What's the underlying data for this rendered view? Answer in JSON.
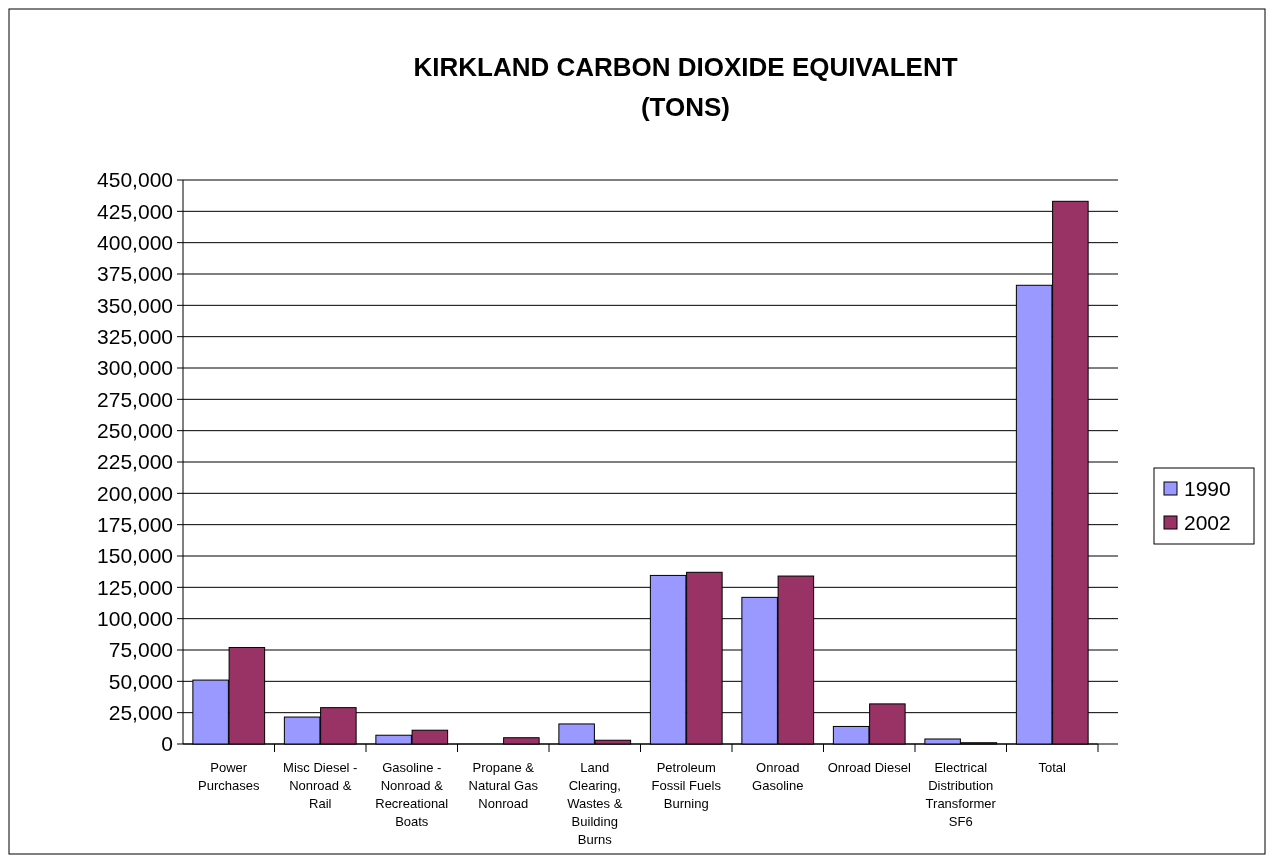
{
  "chart_data": {
    "type": "bar",
    "title": "KIRKLAND CARBON DIOXIDE EQUIVALENT (TONS)",
    "categories": [
      "Power Purchases",
      "Misc Diesel - Nonroad & Rail",
      "Gasoline - Nonroad & Recreational Boats",
      "Propane & Natural Gas Nonroad",
      "Land Clearing, Wastes & Building Burns",
      "Petroleum Fossil Fuels Burning",
      "Onroad Gasoline",
      "Onroad Diesel",
      "Electrical Distribution Transformer SF6",
      "Total"
    ],
    "series": [
      {
        "name": "1990",
        "color": "#9999ff",
        "values": [
          51000,
          21500,
          7000,
          0,
          16000,
          134500,
          117000,
          14000,
          4000,
          366000
        ]
      },
      {
        "name": "2002",
        "color": "#993366",
        "values": [
          77000,
          29000,
          11000,
          5000,
          3000,
          137000,
          134000,
          32000,
          1000,
          433000
        ]
      }
    ],
    "ylim": [
      0,
      450000
    ],
    "yticks": [
      0,
      {
        "value": 25000,
        "label": "25,000"
      },
      {
        "value": 50000,
        "label": "50,000"
      },
      {
        "value": 75000,
        "label": "75,000"
      },
      {
        "value": 100000,
        "label": "100,000"
      },
      {
        "value": 125000,
        "label": "125,000"
      },
      {
        "value": 150000,
        "label": "150,000"
      },
      {
        "value": 175000,
        "label": "175,000"
      },
      {
        "value": 200000,
        "label": "200,000"
      },
      {
        "value": 225000,
        "label": "225,000"
      },
      {
        "value": 250000,
        "label": "250,000"
      },
      {
        "value": 275000,
        "label": "275,000"
      },
      {
        "value": 300000,
        "label": "300,000"
      },
      {
        "value": 325000,
        "label": "325,000"
      },
      {
        "value": 350000,
        "label": "350,000"
      },
      {
        "value": 375000,
        "label": "375,000"
      },
      {
        "value": 400000,
        "label": "400,000"
      },
      {
        "value": 425000,
        "label": "425,000"
      },
      {
        "value": 450000,
        "label": "450,000"
      }
    ],
    "grid": "y",
    "legend": "right"
  }
}
